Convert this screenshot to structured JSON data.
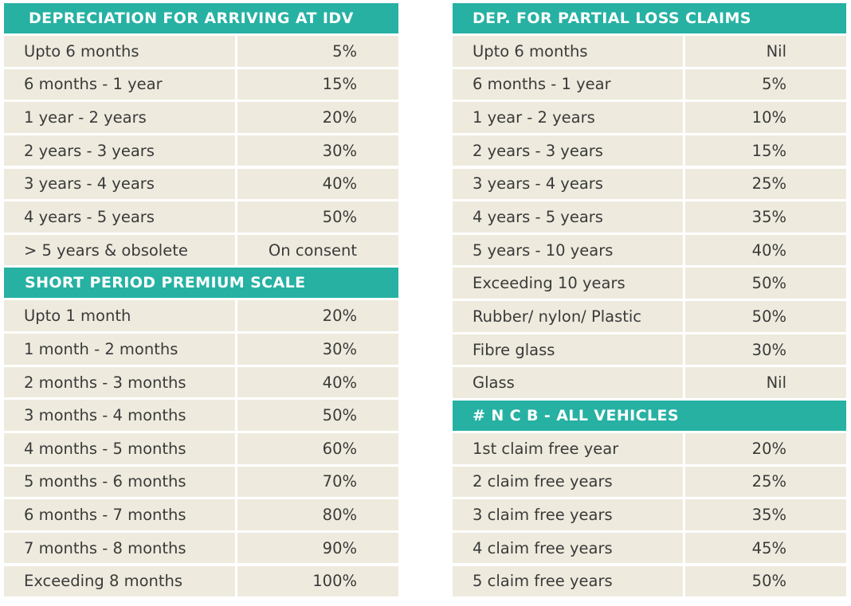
{
  "sections": {
    "idv": {
      "title": "DEPRECIATION FOR ARRIVING AT IDV",
      "rows": [
        {
          "label": "Upto 6 months",
          "value": "5%"
        },
        {
          "label": "6 months - 1 year",
          "value": "15%"
        },
        {
          "label": "1 year - 2 years",
          "value": "20%"
        },
        {
          "label": "2 years - 3 years",
          "value": "30%"
        },
        {
          "label": "3 years - 4 years",
          "value": "40%"
        },
        {
          "label": "4 years - 5 years",
          "value": "50%"
        },
        {
          "label": "> 5 years & obsolete",
          "value": "On consent"
        }
      ]
    },
    "short_period": {
      "title": "SHORT PERIOD PREMIUM SCALE",
      "rows": [
        {
          "label": "Upto 1 month",
          "value": "20%"
        },
        {
          "label": "1 month - 2 months",
          "value": "30%"
        },
        {
          "label": "2 months - 3 months",
          "value": "40%"
        },
        {
          "label": "3 months - 4 months",
          "value": "50%"
        },
        {
          "label": "4 months - 5 months",
          "value": "60%"
        },
        {
          "label": "5 months - 6 months",
          "value": "70%"
        },
        {
          "label": "6 months - 7 months",
          "value": "80%"
        },
        {
          "label": "7 months - 8 months",
          "value": "90%"
        },
        {
          "label": "Exceeding 8 months",
          "value": "100%"
        }
      ]
    },
    "partial_loss": {
      "title": "DEP. FOR PARTIAL LOSS CLAIMS",
      "rows": [
        {
          "label": "Upto 6 months",
          "value": "Nil"
        },
        {
          "label": "6 months - 1 year",
          "value": "5%"
        },
        {
          "label": "1 year - 2 years",
          "value": "10%"
        },
        {
          "label": "2 years - 3 years",
          "value": "15%"
        },
        {
          "label": "3 years - 4 years",
          "value": "25%"
        },
        {
          "label": "4 years - 5 years",
          "value": "35%"
        },
        {
          "label": "5 years - 10 years",
          "value": "40%"
        },
        {
          "label": "Exceeding 10 years",
          "value": "50%"
        },
        {
          "label": "Rubber/ nylon/ Plastic",
          "value": "50%"
        },
        {
          "label": "Fibre glass",
          "value": "30%"
        },
        {
          "label": "Glass",
          "value": "Nil"
        }
      ]
    },
    "ncb": {
      "title": "# N C B - ALL VEHICLES",
      "rows": [
        {
          "label": "1st claim free year",
          "value": "20%"
        },
        {
          "label": "2 claim free years",
          "value": "25%"
        },
        {
          "label": "3 claim free years",
          "value": "35%"
        },
        {
          "label": "4 claim free years",
          "value": "45%"
        },
        {
          "label": "5 claim free years",
          "value": "50%"
        }
      ]
    }
  },
  "colors": {
    "header_bg": "#26b1a3",
    "cell_bg": "#eeebde",
    "text": "#3a3a3a"
  }
}
